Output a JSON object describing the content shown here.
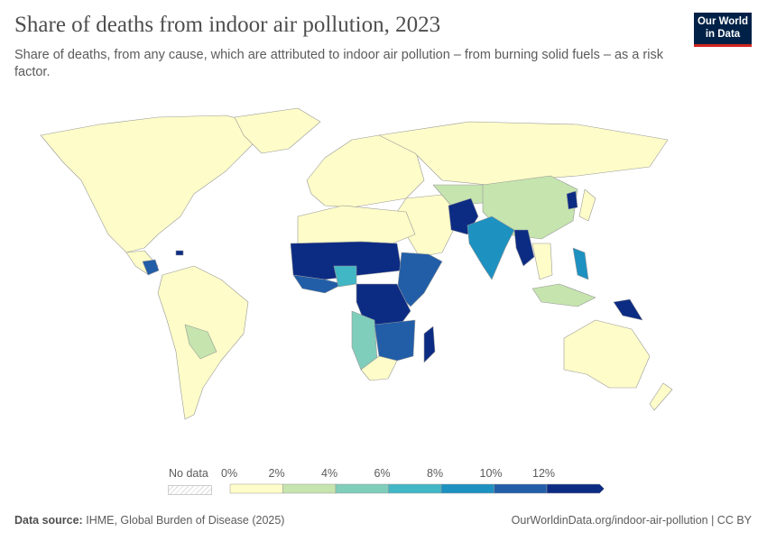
{
  "header": {
    "title": "Share of deaths from indoor air pollution, 2023",
    "subtitle": "Share of deaths, from any cause, which are attributed to indoor air pollution – from burning solid fuels – as a risk factor.",
    "logo": "Our World in Data"
  },
  "legend": {
    "no_data_label": "No data",
    "ticks": [
      "0%",
      "2%",
      "4%",
      "6%",
      "8%",
      "10%",
      "12%"
    ],
    "bins": [
      0,
      2,
      4,
      6,
      8,
      10,
      12
    ],
    "colors": [
      "#fefcc8",
      "#c5e4ae",
      "#7fcdbb",
      "#41b6c4",
      "#1d91c0",
      "#225ea8",
      "#0c2c84"
    ],
    "no_data_color": "#eeeeee"
  },
  "chart_data": {
    "type": "choropleth",
    "metric": "Share of deaths attributed to indoor air pollution (%)",
    "year": 2023,
    "scale_min": 0,
    "scale_max": 12
  },
  "footer": {
    "source_label": "Data source:",
    "source": "IHME, Global Burden of Disease (2025)",
    "url": "OurWorldinData.org/indoor-air-pollution | CC BY"
  }
}
